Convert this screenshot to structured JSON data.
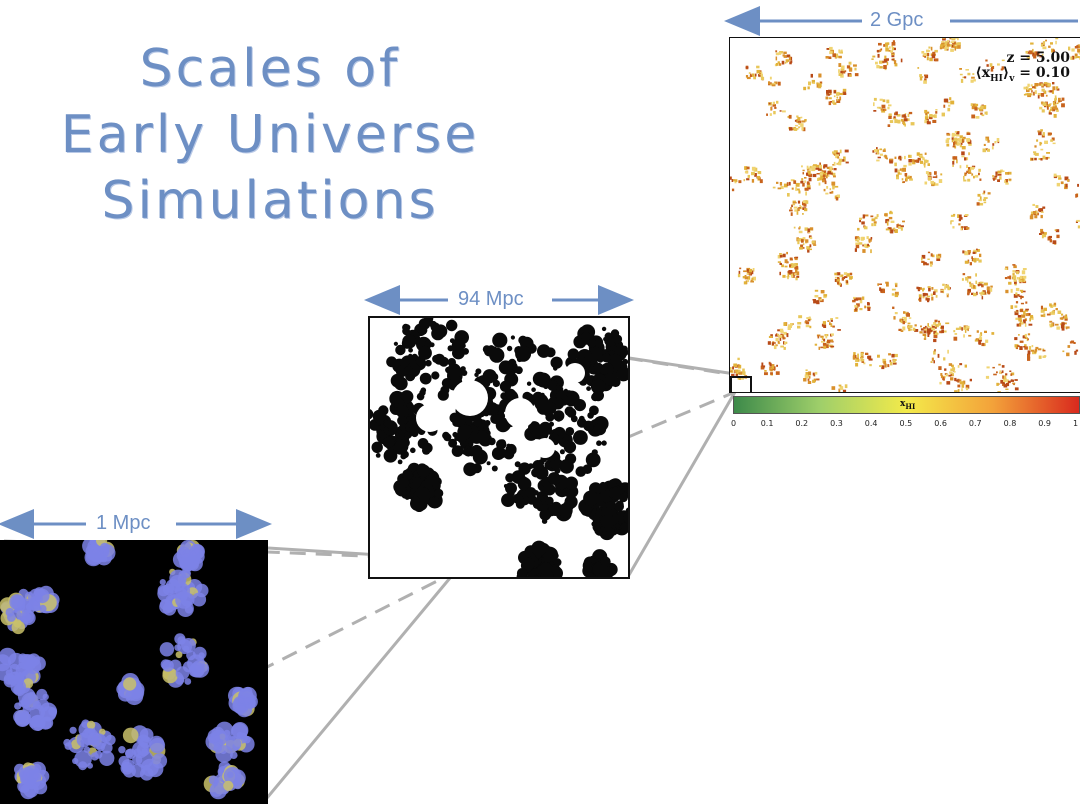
{
  "title_lines": [
    "Scales of",
    "Early Universe",
    "Simulations"
  ],
  "scales": {
    "large": "2 Gpc",
    "medium": "94 Mpc",
    "small": "1 Mpc"
  },
  "large_panel": {
    "redshift_label": "z = 5.00",
    "mean_fraction_label": "⟨x",
    "mean_fraction_sub": "HI",
    "mean_fraction_rest": "⟩",
    "mean_fraction_sub2": "v",
    "mean_fraction_value": " = 0.10"
  },
  "colorbar": {
    "label": "x",
    "label_sub": "HI",
    "ticks": [
      "0",
      "0.1",
      "0.2",
      "0.3",
      "0.4",
      "0.5",
      "0.6",
      "0.7",
      "0.8",
      "0.9",
      "1"
    ],
    "colors": [
      "#3d8a4a",
      "#9fcf6a",
      "#f3ea4a",
      "#f3a23a",
      "#d92a1e"
    ]
  },
  "accent_color": "#6d8fc4"
}
